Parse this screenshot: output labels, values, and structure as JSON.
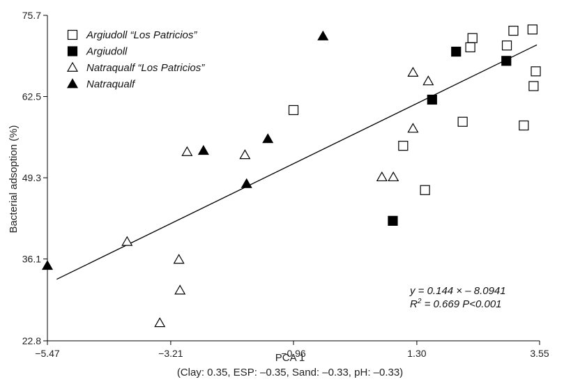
{
  "chart_data": {
    "type": "scatter",
    "xlabel": "PCA 1",
    "xlabel_sub": "(Clay: 0.35, ESP: –0.35, Sand: –0.33, pH: –0.33)",
    "ylabel": "Bacterial adsoption (%)",
    "xlim": [
      -5.47,
      3.55
    ],
    "ylim": [
      22.8,
      75.7
    ],
    "xticks": [
      -5.47,
      -3.21,
      -0.96,
      1.3,
      3.55
    ],
    "xtick_labels": [
      "−5.47",
      "−3.21",
      "−0.96",
      "1.30",
      "3.55"
    ],
    "yticks": [
      22.8,
      36.1,
      49.3,
      62.5,
      75.7
    ],
    "ytick_labels": [
      "22.8",
      "36.1",
      "49.3",
      "62.5",
      "75.7"
    ],
    "legend_position": "top-left",
    "series": [
      {
        "name": "Argiudoll “Los Patricios”",
        "marker": "square-open",
        "x": [
          -0.96,
          2.28,
          2.32,
          2.95,
          3.07,
          3.42,
          3.48,
          3.44,
          3.26,
          2.14,
          1.05,
          1.45
        ],
        "y": [
          60.3,
          70.5,
          72.0,
          70.8,
          73.2,
          73.4,
          66.6,
          64.2,
          57.8,
          58.4,
          54.5,
          47.3
        ]
      },
      {
        "name": "Argiudoll",
        "marker": "square-filled",
        "x": [
          2.02,
          2.94,
          1.58,
          0.86
        ],
        "y": [
          69.8,
          68.3,
          62.0,
          42.3
        ]
      },
      {
        "name": "Natraqualf “Los Patricios”",
        "marker": "triangle-open",
        "x": [
          -4.01,
          -3.06,
          -3.04,
          -3.41,
          -2.91,
          -1.85,
          0.66,
          0.87,
          1.23,
          1.23,
          1.51
        ],
        "y": [
          38.9,
          36.0,
          31.0,
          25.7,
          53.5,
          53.0,
          49.4,
          49.4,
          57.3,
          66.4,
          65.0
        ]
      },
      {
        "name": "Natraqualf",
        "marker": "triangle-filled",
        "x": [
          -5.47,
          -2.61,
          -1.82,
          -1.43,
          -0.42
        ],
        "y": [
          35.0,
          53.7,
          48.3,
          55.6,
          72.3
        ]
      }
    ],
    "regression": {
      "slope": 0.144,
      "intercept": -8.0941,
      "x_start": -5.3,
      "x_end": 3.5,
      "y_start": 32.8,
      "y_end": 70.9
    },
    "annotations": {
      "equation": "y = 0.144 × – 8.0941",
      "r2_prefix": "R",
      "r2_sup": "2",
      "r2_rest": " = 0.669  P<0.001"
    }
  }
}
